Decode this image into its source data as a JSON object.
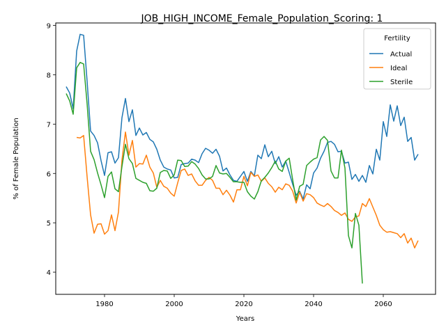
{
  "chart_data": {
    "type": "line",
    "title": "JOB_HIGH_INCOME_Female_Population_Scoring: 1",
    "xlabel": "Years",
    "ylabel": "% of Female Population",
    "xlim": [
      1966,
      2075
    ],
    "ylim": [
      3.55,
      9.05
    ],
    "xticks": [
      1980,
      2000,
      2020,
      2040,
      2060
    ],
    "yticks": [
      4,
      5,
      6,
      7,
      8,
      9
    ],
    "grid": false,
    "legend": {
      "title": "Fertility",
      "position": "top-right"
    },
    "series": [
      {
        "name": "Actual",
        "color": "#1f77b4",
        "points": [
          [
            1969,
            7.76
          ],
          [
            1970,
            7.63
          ],
          [
            1971,
            7.31
          ],
          [
            1972,
            8.48
          ],
          [
            1973,
            8.82
          ],
          [
            1974,
            8.8
          ],
          [
            1975,
            7.87
          ],
          [
            1976,
            6.86
          ],
          [
            1977,
            6.77
          ],
          [
            1978,
            6.62
          ],
          [
            1979,
            6.26
          ],
          [
            1980,
            5.96
          ],
          [
            1981,
            6.42
          ],
          [
            1982,
            6.44
          ],
          [
            1983,
            6.21
          ],
          [
            1984,
            6.32
          ],
          [
            1985,
            7.13
          ],
          [
            1986,
            7.52
          ],
          [
            1987,
            7.05
          ],
          [
            1988,
            7.29
          ],
          [
            1989,
            6.77
          ],
          [
            1990,
            6.92
          ],
          [
            1991,
            6.78
          ],
          [
            1992,
            6.83
          ],
          [
            1993,
            6.69
          ],
          [
            1994,
            6.64
          ],
          [
            1995,
            6.49
          ],
          [
            1996,
            6.27
          ],
          [
            1997,
            6.13
          ],
          [
            1998,
            6.09
          ],
          [
            1999,
            6.07
          ],
          [
            2000,
            5.91
          ],
          [
            2001,
            5.92
          ],
          [
            2002,
            6.18
          ],
          [
            2003,
            6.2
          ],
          [
            2004,
            6.21
          ],
          [
            2005,
            6.29
          ],
          [
            2006,
            6.27
          ],
          [
            2007,
            6.22
          ],
          [
            2008,
            6.4
          ],
          [
            2009,
            6.51
          ],
          [
            2010,
            6.47
          ],
          [
            2011,
            6.41
          ],
          [
            2012,
            6.49
          ],
          [
            2013,
            6.35
          ],
          [
            2014,
            6.05
          ],
          [
            2015,
            6.11
          ],
          [
            2016,
            5.97
          ],
          [
            2017,
            5.86
          ],
          [
            2018,
            5.84
          ],
          [
            2019,
            5.94
          ],
          [
            2020,
            6.04
          ],
          [
            2021,
            5.84
          ],
          [
            2022,
            6.04
          ],
          [
            2023,
            5.95
          ],
          [
            2024,
            6.37
          ],
          [
            2025,
            6.3
          ],
          [
            2026,
            6.58
          ],
          [
            2027,
            6.34
          ],
          [
            2028,
            6.45
          ],
          [
            2029,
            6.2
          ],
          [
            2030,
            6.34
          ],
          [
            2031,
            6.13
          ],
          [
            2032,
            6.25
          ],
          [
            2033,
            6.02
          ],
          [
            2034,
            5.78
          ],
          [
            2035,
            5.56
          ],
          [
            2036,
            5.64
          ],
          [
            2037,
            5.48
          ],
          [
            2038,
            5.77
          ],
          [
            2039,
            5.69
          ],
          [
            2040,
            6.01
          ],
          [
            2041,
            6.11
          ],
          [
            2042,
            6.31
          ],
          [
            2043,
            6.45
          ],
          [
            2044,
            6.63
          ],
          [
            2045,
            6.65
          ],
          [
            2046,
            6.59
          ],
          [
            2047,
            6.44
          ],
          [
            2048,
            6.45
          ],
          [
            2049,
            6.21
          ],
          [
            2050,
            6.23
          ],
          [
            2051,
            5.88
          ],
          [
            2052,
            5.98
          ],
          [
            2053,
            5.84
          ],
          [
            2054,
            5.96
          ],
          [
            2055,
            5.82
          ],
          [
            2056,
            6.16
          ],
          [
            2057,
            5.99
          ],
          [
            2058,
            6.49
          ],
          [
            2059,
            6.27
          ],
          [
            2060,
            7.05
          ],
          [
            2061,
            6.75
          ],
          [
            2062,
            7.39
          ],
          [
            2063,
            7.06
          ],
          [
            2064,
            7.37
          ],
          [
            2065,
            6.97
          ],
          [
            2066,
            7.14
          ],
          [
            2067,
            6.65
          ],
          [
            2068,
            6.73
          ],
          [
            2069,
            6.27
          ],
          [
            2070,
            6.39
          ]
        ]
      },
      {
        "name": "Ideal",
        "color": "#ff7f0e",
        "points": [
          [
            1972,
            6.73
          ],
          [
            1973,
            6.72
          ],
          [
            1974,
            6.77
          ],
          [
            1975,
            5.93
          ],
          [
            1976,
            5.16
          ],
          [
            1977,
            4.79
          ],
          [
            1978,
            4.97
          ],
          [
            1979,
            4.98
          ],
          [
            1980,
            4.77
          ],
          [
            1981,
            4.84
          ],
          [
            1982,
            5.16
          ],
          [
            1983,
            4.84
          ],
          [
            1984,
            5.22
          ],
          [
            1985,
            6.27
          ],
          [
            1986,
            6.84
          ],
          [
            1987,
            6.37
          ],
          [
            1988,
            6.67
          ],
          [
            1989,
            6.13
          ],
          [
            1990,
            6.2
          ],
          [
            1991,
            6.19
          ],
          [
            1992,
            6.37
          ],
          [
            1993,
            6.13
          ],
          [
            1994,
            6.01
          ],
          [
            1995,
            5.72
          ],
          [
            1996,
            5.86
          ],
          [
            1997,
            5.74
          ],
          [
            1998,
            5.7
          ],
          [
            1999,
            5.6
          ],
          [
            2000,
            5.54
          ],
          [
            2001,
            5.81
          ],
          [
            2002,
            6.06
          ],
          [
            2003,
            6.09
          ],
          [
            2004,
            5.96
          ],
          [
            2005,
            5.99
          ],
          [
            2006,
            5.85
          ],
          [
            2007,
            5.76
          ],
          [
            2008,
            5.76
          ],
          [
            2009,
            5.86
          ],
          [
            2010,
            5.92
          ],
          [
            2011,
            5.86
          ],
          [
            2012,
            5.7
          ],
          [
            2013,
            5.7
          ],
          [
            2014,
            5.57
          ],
          [
            2015,
            5.66
          ],
          [
            2016,
            5.56
          ],
          [
            2017,
            5.42
          ],
          [
            2018,
            5.67
          ],
          [
            2019,
            5.67
          ],
          [
            2020,
            5.94
          ],
          [
            2021,
            5.75
          ],
          [
            2022,
            6.02
          ],
          [
            2023,
            5.94
          ],
          [
            2024,
            5.97
          ],
          [
            2025,
            5.84
          ],
          [
            2026,
            5.91
          ],
          [
            2027,
            5.8
          ],
          [
            2028,
            5.73
          ],
          [
            2029,
            5.62
          ],
          [
            2030,
            5.72
          ],
          [
            2031,
            5.67
          ],
          [
            2032,
            5.79
          ],
          [
            2033,
            5.76
          ],
          [
            2034,
            5.64
          ],
          [
            2035,
            5.4
          ],
          [
            2036,
            5.62
          ],
          [
            2037,
            5.44
          ],
          [
            2038,
            5.59
          ],
          [
            2039,
            5.57
          ],
          [
            2040,
            5.51
          ],
          [
            2041,
            5.4
          ],
          [
            2042,
            5.36
          ],
          [
            2043,
            5.33
          ],
          [
            2044,
            5.39
          ],
          [
            2045,
            5.33
          ],
          [
            2046,
            5.25
          ],
          [
            2047,
            5.21
          ],
          [
            2048,
            5.15
          ],
          [
            2049,
            5.2
          ],
          [
            2050,
            5.07
          ],
          [
            2051,
            5.03
          ],
          [
            2052,
            5.12
          ],
          [
            2053,
            5.14
          ],
          [
            2054,
            5.39
          ],
          [
            2055,
            5.33
          ],
          [
            2056,
            5.49
          ],
          [
            2057,
            5.32
          ],
          [
            2058,
            5.15
          ],
          [
            2059,
            4.95
          ],
          [
            2060,
            4.86
          ],
          [
            2061,
            4.81
          ],
          [
            2062,
            4.82
          ],
          [
            2063,
            4.8
          ],
          [
            2064,
            4.78
          ],
          [
            2065,
            4.7
          ],
          [
            2066,
            4.78
          ],
          [
            2067,
            4.59
          ],
          [
            2068,
            4.69
          ],
          [
            2069,
            4.49
          ],
          [
            2070,
            4.64
          ]
        ]
      },
      {
        "name": "Sterile",
        "color": "#2ca02c",
        "points": [
          [
            1969,
            7.62
          ],
          [
            1970,
            7.47
          ],
          [
            1971,
            7.2
          ],
          [
            1972,
            8.14
          ],
          [
            1973,
            8.25
          ],
          [
            1974,
            8.22
          ],
          [
            1975,
            7.41
          ],
          [
            1976,
            6.45
          ],
          [
            1977,
            6.28
          ],
          [
            1978,
            6.01
          ],
          [
            1979,
            5.77
          ],
          [
            1980,
            5.51
          ],
          [
            1981,
            5.94
          ],
          [
            1982,
            6.03
          ],
          [
            1983,
            5.69
          ],
          [
            1984,
            5.63
          ],
          [
            1985,
            6.14
          ],
          [
            1986,
            6.59
          ],
          [
            1987,
            6.3
          ],
          [
            1988,
            6.2
          ],
          [
            1989,
            5.9
          ],
          [
            1990,
            5.86
          ],
          [
            1991,
            5.82
          ],
          [
            1992,
            5.8
          ],
          [
            1993,
            5.65
          ],
          [
            1994,
            5.64
          ],
          [
            1995,
            5.7
          ],
          [
            1996,
            6.02
          ],
          [
            1997,
            6.06
          ],
          [
            1998,
            6.05
          ],
          [
            1999,
            5.9
          ],
          [
            2000,
            5.97
          ],
          [
            2001,
            6.27
          ],
          [
            2002,
            6.26
          ],
          [
            2003,
            6.14
          ],
          [
            2004,
            6.15
          ],
          [
            2005,
            6.24
          ],
          [
            2006,
            6.19
          ],
          [
            2007,
            6.1
          ],
          [
            2008,
            5.97
          ],
          [
            2009,
            5.89
          ],
          [
            2010,
            5.89
          ],
          [
            2011,
            5.94
          ],
          [
            2012,
            6.16
          ],
          [
            2013,
            6.01
          ],
          [
            2014,
            5.99
          ],
          [
            2015,
            6.0
          ],
          [
            2016,
            5.92
          ],
          [
            2017,
            5.83
          ],
          [
            2018,
            5.83
          ],
          [
            2019,
            5.82
          ],
          [
            2020,
            5.82
          ],
          [
            2021,
            5.63
          ],
          [
            2022,
            5.54
          ],
          [
            2023,
            5.48
          ],
          [
            2024,
            5.63
          ],
          [
            2025,
            5.85
          ],
          [
            2026,
            5.92
          ],
          [
            2027,
            6.01
          ],
          [
            2028,
            6.12
          ],
          [
            2029,
            6.25
          ],
          [
            2030,
            6.09
          ],
          [
            2031,
            6.04
          ],
          [
            2032,
            6.25
          ],
          [
            2033,
            6.31
          ],
          [
            2034,
            5.87
          ],
          [
            2035,
            5.46
          ],
          [
            2036,
            5.74
          ],
          [
            2037,
            5.78
          ],
          [
            2038,
            6.16
          ],
          [
            2039,
            6.23
          ],
          [
            2040,
            6.29
          ],
          [
            2041,
            6.32
          ],
          [
            2042,
            6.68
          ],
          [
            2043,
            6.75
          ],
          [
            2044,
            6.67
          ],
          [
            2045,
            6.05
          ],
          [
            2046,
            5.91
          ],
          [
            2047,
            5.91
          ],
          [
            2048,
            6.47
          ],
          [
            2049,
            6.11
          ],
          [
            2050,
            4.74
          ],
          [
            2051,
            4.49
          ],
          [
            2052,
            5.19
          ],
          [
            2053,
            4.95
          ],
          [
            2054,
            3.77
          ]
        ]
      }
    ]
  }
}
